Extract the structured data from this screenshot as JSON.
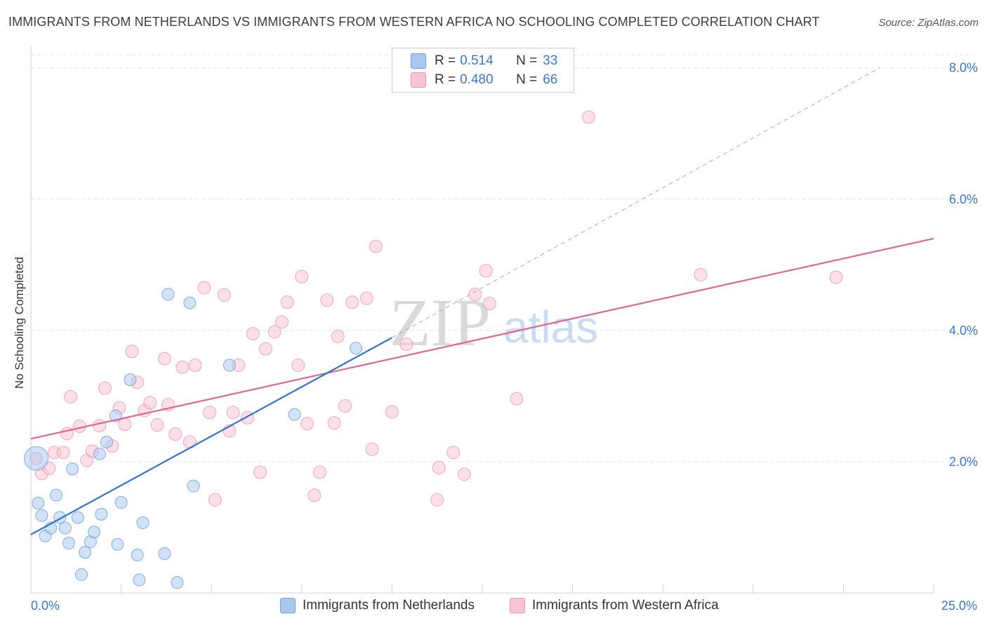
{
  "header": {
    "title": "IMMIGRANTS FROM NETHERLANDS VS IMMIGRANTS FROM WESTERN AFRICA NO SCHOOLING COMPLETED CORRELATION CHART",
    "source": "Source: ZipAtlas.com"
  },
  "watermark": {
    "zip": "ZIP",
    "atlas": "atlas"
  },
  "legend": {
    "rows": [
      {
        "r_label": "R =",
        "r_value": "0.514",
        "n_label": "N =",
        "n_value": "33",
        "color": "#a8c8f0",
        "border": "#6f9fe0"
      },
      {
        "r_label": "R =",
        "r_value": "0.480",
        "n_label": "N =",
        "n_value": "66",
        "color": "#f9c4d4",
        "border": "#ec94b0"
      }
    ]
  },
  "bottom_legend": {
    "netherlands": "Immigrants from Netherlands",
    "western_africa": "Immigrants from Western Africa"
  },
  "chart_data": {
    "type": "scatter",
    "title": "IMMIGRANTS FROM NETHERLANDS VS IMMIGRANTS FROM WESTERN AFRICA NO SCHOOLING COMPLETED CORRELATION CHART",
    "xlabel": "",
    "ylabel": "No Schooling Completed",
    "xlim": [
      0,
      25
    ],
    "ylim": [
      0,
      8.0
    ],
    "x_tick_labels": [
      {
        "value": 0,
        "label": "0.0%"
      },
      {
        "value": 25,
        "label": "25.0%"
      }
    ],
    "y_tick_labels": [
      {
        "value": 2.0,
        "label": "2.0%"
      },
      {
        "value": 4.0,
        "label": "4.0%"
      },
      {
        "value": 6.0,
        "label": "6.0%"
      },
      {
        "value": 8.0,
        "label": "8.0%"
      }
    ],
    "grid": true,
    "colors": {
      "netherlands": "#6f9fe0",
      "western_africa": "#ec94b0",
      "netherlands_line": "#3273d0",
      "western_africa_line": "#e06690"
    },
    "series": [
      {
        "name": "Immigrants from Netherlands",
        "trend": {
          "x0": 0,
          "y0": 0.89,
          "x1": 10,
          "y1": 3.89,
          "dashed_to_x": 23.5,
          "dashed_to_y": 8.0
        },
        "points": [
          {
            "x": 0.15,
            "y": 2.05,
            "big": true
          },
          {
            "x": 0.2,
            "y": 1.37
          },
          {
            "x": 0.3,
            "y": 1.18
          },
          {
            "x": 0.4,
            "y": 0.87
          },
          {
            "x": 0.55,
            "y": 0.99
          },
          {
            "x": 0.7,
            "y": 1.49
          },
          {
            "x": 0.8,
            "y": 1.15
          },
          {
            "x": 0.95,
            "y": 0.99
          },
          {
            "x": 1.05,
            "y": 0.76
          },
          {
            "x": 1.15,
            "y": 1.89
          },
          {
            "x": 1.3,
            "y": 1.15
          },
          {
            "x": 1.4,
            "y": 0.28
          },
          {
            "x": 1.5,
            "y": 0.62
          },
          {
            "x": 1.65,
            "y": 0.78
          },
          {
            "x": 1.75,
            "y": 0.93
          },
          {
            "x": 1.9,
            "y": 2.12
          },
          {
            "x": 1.95,
            "y": 1.2
          },
          {
            "x": 2.1,
            "y": 2.3
          },
          {
            "x": 2.35,
            "y": 2.7
          },
          {
            "x": 2.4,
            "y": 0.74
          },
          {
            "x": 2.5,
            "y": 1.38
          },
          {
            "x": 2.75,
            "y": 3.25
          },
          {
            "x": 2.95,
            "y": 0.58
          },
          {
            "x": 3.0,
            "y": 0.2
          },
          {
            "x": 3.1,
            "y": 1.07
          },
          {
            "x": 3.7,
            "y": 0.6
          },
          {
            "x": 3.8,
            "y": 4.55
          },
          {
            "x": 4.05,
            "y": 0.16
          },
          {
            "x": 4.4,
            "y": 4.42
          },
          {
            "x": 4.5,
            "y": 1.63
          },
          {
            "x": 5.5,
            "y": 3.47
          },
          {
            "x": 7.3,
            "y": 2.72
          },
          {
            "x": 9.0,
            "y": 3.73
          }
        ]
      },
      {
        "name": "Immigrants from Western Africa",
        "trend": {
          "x0": 0,
          "y0": 2.35,
          "x1": 25,
          "y1": 5.4
        },
        "points": [
          {
            "x": 0.3,
            "y": 1.82
          },
          {
            "x": 0.5,
            "y": 1.9
          },
          {
            "x": 0.65,
            "y": 2.14
          },
          {
            "x": 0.9,
            "y": 2.14
          },
          {
            "x": 1.0,
            "y": 2.43
          },
          {
            "x": 1.1,
            "y": 2.99
          },
          {
            "x": 1.35,
            "y": 2.54
          },
          {
            "x": 1.55,
            "y": 2.02
          },
          {
            "x": 1.7,
            "y": 2.16
          },
          {
            "x": 1.9,
            "y": 2.55
          },
          {
            "x": 2.05,
            "y": 3.12
          },
          {
            "x": 2.25,
            "y": 2.24
          },
          {
            "x": 2.45,
            "y": 2.82
          },
          {
            "x": 2.6,
            "y": 2.57
          },
          {
            "x": 2.8,
            "y": 3.68
          },
          {
            "x": 2.95,
            "y": 3.21
          },
          {
            "x": 3.15,
            "y": 2.78
          },
          {
            "x": 3.3,
            "y": 2.9
          },
          {
            "x": 3.5,
            "y": 2.56
          },
          {
            "x": 3.7,
            "y": 3.57
          },
          {
            "x": 3.8,
            "y": 2.87
          },
          {
            "x": 4.0,
            "y": 2.42
          },
          {
            "x": 4.2,
            "y": 3.44
          },
          {
            "x": 4.4,
            "y": 2.3
          },
          {
            "x": 4.55,
            "y": 3.47
          },
          {
            "x": 4.8,
            "y": 4.65
          },
          {
            "x": 4.95,
            "y": 2.75
          },
          {
            "x": 5.1,
            "y": 1.42
          },
          {
            "x": 5.35,
            "y": 4.54
          },
          {
            "x": 5.5,
            "y": 2.47
          },
          {
            "x": 5.6,
            "y": 2.75
          },
          {
            "x": 5.75,
            "y": 3.47
          },
          {
            "x": 6.0,
            "y": 2.67
          },
          {
            "x": 6.15,
            "y": 3.95
          },
          {
            "x": 6.35,
            "y": 1.84
          },
          {
            "x": 6.5,
            "y": 3.72
          },
          {
            "x": 6.75,
            "y": 3.98
          },
          {
            "x": 6.95,
            "y": 4.13
          },
          {
            "x": 7.1,
            "y": 4.43
          },
          {
            "x": 7.4,
            "y": 3.47
          },
          {
            "x": 7.5,
            "y": 4.82
          },
          {
            "x": 7.65,
            "y": 2.58
          },
          {
            "x": 7.85,
            "y": 1.49
          },
          {
            "x": 8.0,
            "y": 1.84
          },
          {
            "x": 8.2,
            "y": 4.46
          },
          {
            "x": 8.4,
            "y": 2.59
          },
          {
            "x": 8.5,
            "y": 3.91
          },
          {
            "x": 8.7,
            "y": 2.85
          },
          {
            "x": 8.9,
            "y": 4.43
          },
          {
            "x": 9.3,
            "y": 4.49
          },
          {
            "x": 9.45,
            "y": 2.19
          },
          {
            "x": 9.55,
            "y": 5.28
          },
          {
            "x": 10.0,
            "y": 2.76
          },
          {
            "x": 10.4,
            "y": 3.79
          },
          {
            "x": 11.25,
            "y": 1.42
          },
          {
            "x": 11.3,
            "y": 1.91
          },
          {
            "x": 11.7,
            "y": 2.14
          },
          {
            "x": 12.0,
            "y": 1.81
          },
          {
            "x": 12.3,
            "y": 4.55
          },
          {
            "x": 12.6,
            "y": 4.91
          },
          {
            "x": 12.7,
            "y": 4.41
          },
          {
            "x": 13.45,
            "y": 2.96
          },
          {
            "x": 15.45,
            "y": 7.25
          },
          {
            "x": 18.55,
            "y": 4.85
          },
          {
            "x": 22.3,
            "y": 4.81
          },
          {
            "x": 0.15,
            "y": 2.05
          }
        ]
      }
    ]
  }
}
